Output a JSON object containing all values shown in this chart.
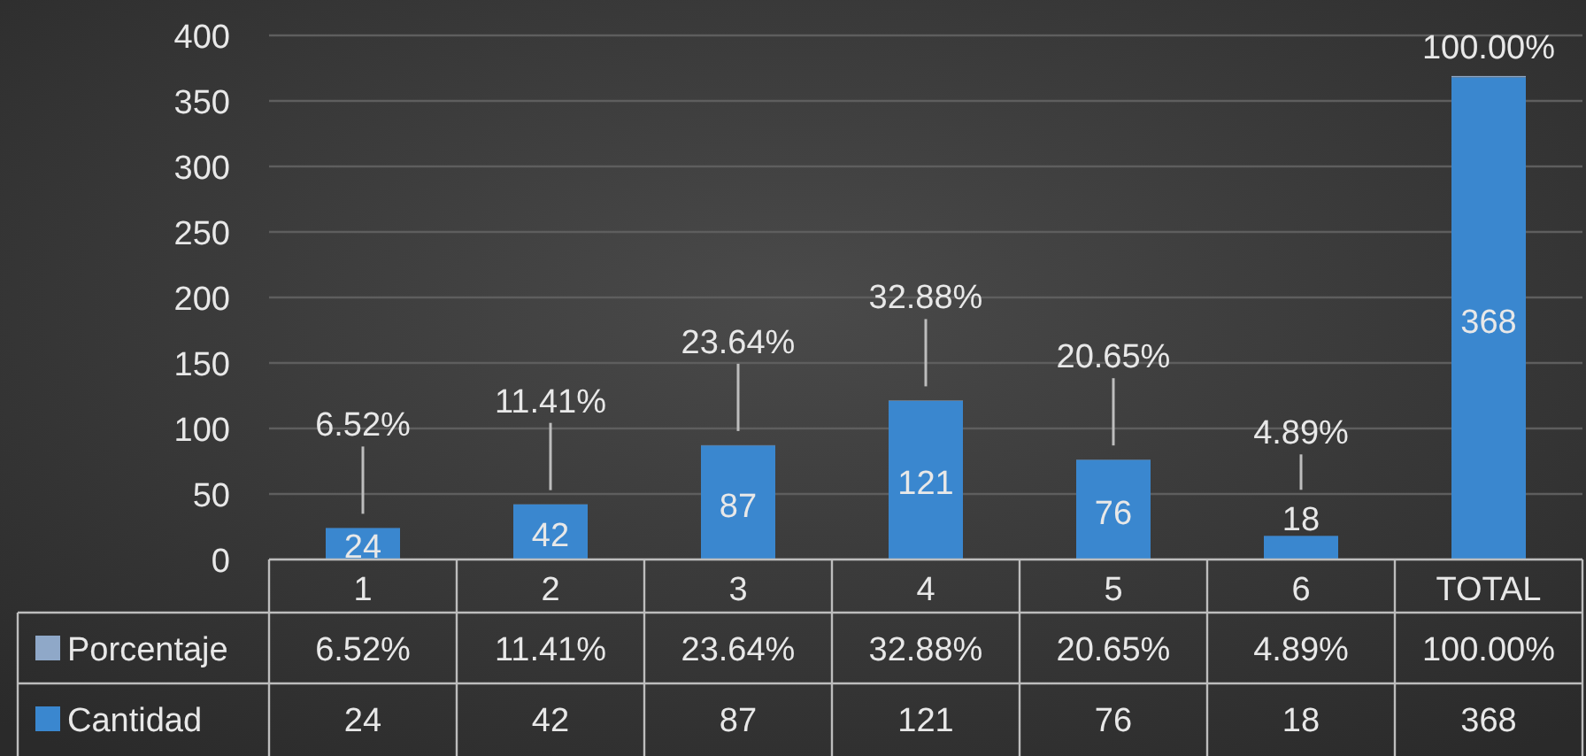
{
  "chart_data": {
    "type": "bar",
    "categories": [
      "1",
      "2",
      "3",
      "4",
      "5",
      "6",
      "TOTAL"
    ],
    "series": [
      {
        "name": "Cantidad",
        "color": "#3a87cf",
        "values": [
          24,
          42,
          87,
          121,
          76,
          18,
          368
        ],
        "value_labels": [
          "24",
          "42",
          "87",
          "121",
          "76",
          "18",
          "368"
        ]
      },
      {
        "name": "Porcentaje",
        "color": "#8fa8c8",
        "values": [
          0.0652,
          0.1141,
          0.2364,
          0.3288,
          0.2065,
          0.0489,
          1
        ],
        "value_labels": [
          "6.52%",
          "11.41%",
          "23.64%",
          "32.88%",
          "20.65%",
          "4.89%",
          "100.00%"
        ]
      }
    ],
    "stacked": true,
    "data_labels": true,
    "ylim": [
      0,
      400
    ],
    "yticks": [
      0,
      50,
      100,
      150,
      200,
      250,
      300,
      350,
      400
    ],
    "grid": "y",
    "legend": "bottom"
  }
}
